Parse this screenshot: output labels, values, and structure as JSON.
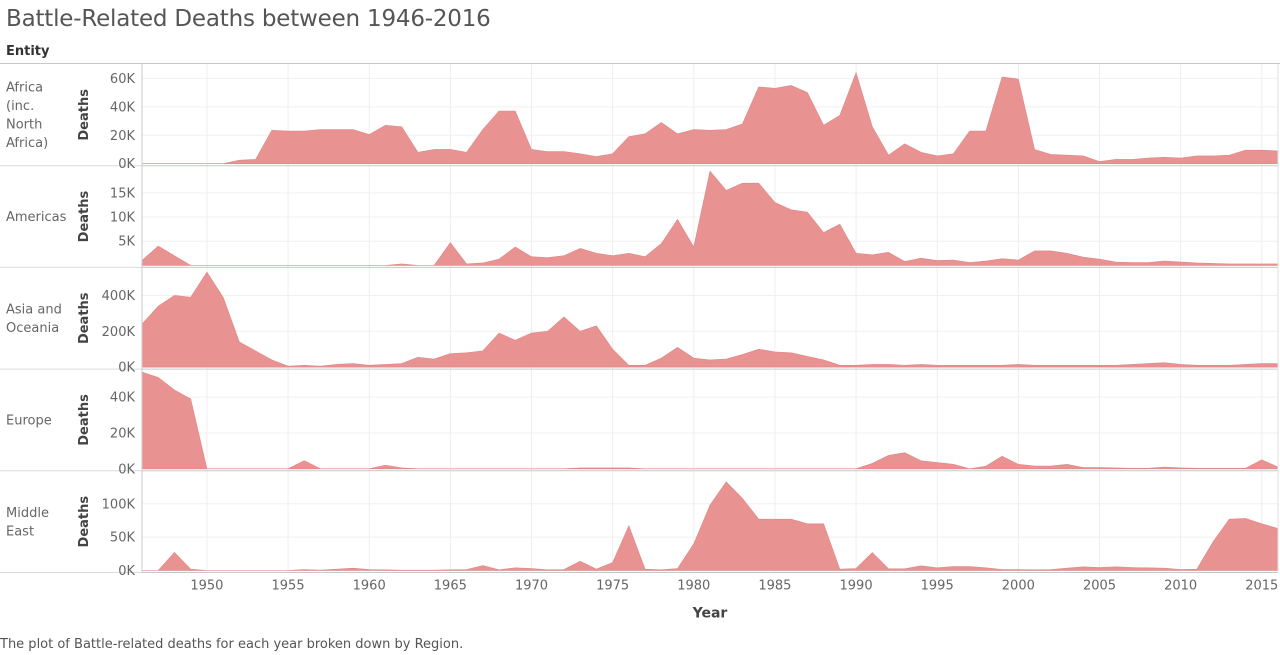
{
  "title": "Battle-Related Deaths between 1946-2016",
  "entity_header": "Entity",
  "caption": "The plot of Battle-related deaths for each year broken down by Region.",
  "chart_data": {
    "type": "area",
    "title": "Battle-Related Deaths between 1946-2016",
    "xlabel": "Year",
    "ylabel": "Deaths",
    "xlim": [
      1946,
      2016
    ],
    "x_ticks": [
      1950,
      1955,
      1960,
      1965,
      1970,
      1975,
      1980,
      1985,
      1990,
      1995,
      2000,
      2005,
      2010,
      2015
    ],
    "x_tick_labels": [
      "1950",
      "1955",
      "1960",
      "1965",
      "1970",
      "1975",
      "1980",
      "1985",
      "1990",
      "1995",
      "2000",
      "2005",
      "2010",
      "2015"
    ],
    "color": "#e88d8d",
    "grid": true,
    "years": [
      1946,
      1947,
      1948,
      1949,
      1950,
      1951,
      1952,
      1953,
      1954,
      1955,
      1956,
      1957,
      1958,
      1959,
      1960,
      1961,
      1962,
      1963,
      1964,
      1965,
      1966,
      1967,
      1968,
      1969,
      1970,
      1971,
      1972,
      1973,
      1974,
      1975,
      1976,
      1977,
      1978,
      1979,
      1980,
      1981,
      1982,
      1983,
      1984,
      1985,
      1986,
      1987,
      1988,
      1989,
      1990,
      1991,
      1992,
      1993,
      1994,
      1995,
      1996,
      1997,
      1998,
      1999,
      2000,
      2001,
      2002,
      2003,
      2004,
      2005,
      2006,
      2007,
      2008,
      2009,
      2010,
      2011,
      2012,
      2013,
      2014,
      2015,
      2016
    ],
    "series": [
      {
        "name": "Africa (inc. North Africa)",
        "label_lines": [
          "Africa",
          "(inc.",
          "North",
          "Africa)"
        ],
        "ylim": [
          0,
          68000
        ],
        "y_ticks": [
          0,
          20000,
          40000,
          60000
        ],
        "y_tick_labels": [
          "0K",
          "20K",
          "40K",
          "60K"
        ],
        "values": [
          0,
          0,
          0,
          0,
          0,
          0,
          2500,
          3000,
          23500,
          23000,
          23000,
          24000,
          24000,
          24000,
          20500,
          27000,
          26000,
          8000,
          10000,
          10000,
          8000,
          24000,
          37000,
          37000,
          10000,
          8500,
          8500,
          7000,
          5000,
          7000,
          19000,
          21000,
          29000,
          21000,
          24000,
          23500,
          24000,
          28000,
          54000,
          53000,
          55000,
          50000,
          27000,
          34000,
          64000,
          26000,
          6000,
          14000,
          8000,
          5500,
          7000,
          23000,
          23000,
          61000,
          59500,
          10000,
          6500,
          6000,
          5500,
          1500,
          3000,
          3000,
          4000,
          4500,
          4000,
          5500,
          5500,
          6000,
          9500,
          9500,
          9000
        ]
      },
      {
        "name": "Americas",
        "label_lines": [
          "Americas"
        ],
        "ylim": [
          0,
          20000
        ],
        "y_ticks": [
          5000,
          10000,
          15000
        ],
        "y_tick_labels": [
          "5K",
          "10K",
          "15K"
        ],
        "values": [
          1000,
          4000,
          2000,
          0,
          0,
          0,
          0,
          0,
          0,
          0,
          0,
          0,
          0,
          0,
          0,
          0,
          300,
          0,
          0,
          4700,
          300,
          500,
          1300,
          3800,
          1800,
          1600,
          2000,
          3500,
          2500,
          2000,
          2500,
          1800,
          4500,
          9500,
          3800,
          19500,
          15500,
          17000,
          17000,
          13000,
          11500,
          11000,
          6800,
          8500,
          2500,
          2200,
          2700,
          800,
          1500,
          1000,
          1100,
          600,
          900,
          1400,
          1100,
          3000,
          3000,
          2500,
          1700,
          1300,
          700,
          600,
          600,
          900,
          700,
          500,
          400,
          300,
          300,
          300,
          300
        ]
      },
      {
        "name": "Asia and Oceania",
        "label_lines": [
          "Asia and",
          "Oceania"
        ],
        "ylim": [
          0,
          540000
        ],
        "y_ticks": [
          0,
          200000,
          400000
        ],
        "y_tick_labels": [
          "0K",
          "200K",
          "400K"
        ],
        "values": [
          240000,
          340000,
          400000,
          390000,
          530000,
          390000,
          140000,
          90000,
          40000,
          5000,
          10000,
          5000,
          15000,
          20000,
          10000,
          15000,
          20000,
          55000,
          45000,
          75000,
          80000,
          90000,
          190000,
          150000,
          190000,
          200000,
          280000,
          200000,
          230000,
          100000,
          10000,
          10000,
          50000,
          110000,
          50000,
          40000,
          45000,
          70000,
          100000,
          85000,
          80000,
          60000,
          40000,
          10000,
          10000,
          15000,
          15000,
          10000,
          15000,
          10000,
          10000,
          10000,
          10000,
          10000,
          15000,
          10000,
          10000,
          10000,
          10000,
          10000,
          10000,
          15000,
          20000,
          25000,
          15000,
          10000,
          10000,
          10000,
          15000,
          20000,
          20000
        ]
      },
      {
        "name": "Europe",
        "label_lines": [
          "Europe"
        ],
        "ylim": [
          0,
          54000
        ],
        "y_ticks": [
          0,
          20000,
          40000
        ],
        "y_tick_labels": [
          "0K",
          "20K",
          "40K"
        ],
        "values": [
          54000,
          51000,
          44000,
          39000,
          0,
          0,
          0,
          0,
          0,
          0,
          4500,
          0,
          0,
          0,
          0,
          2000,
          500,
          0,
          0,
          0,
          0,
          0,
          0,
          0,
          0,
          0,
          0,
          500,
          500,
          500,
          500,
          0,
          0,
          0,
          0,
          0,
          0,
          0,
          0,
          0,
          0,
          0,
          0,
          0,
          0,
          3000,
          7500,
          9000,
          4500,
          3500,
          2500,
          0,
          1500,
          7000,
          2500,
          1500,
          1500,
          2500,
          700,
          700,
          500,
          300,
          300,
          1000,
          500,
          300,
          300,
          300,
          300,
          5000,
          1000
        ]
      },
      {
        "name": "Middle East",
        "label_lines": [
          "Middle",
          "East"
        ],
        "ylim": [
          0,
          145000
        ],
        "y_ticks": [
          0,
          50000,
          100000
        ],
        "y_tick_labels": [
          "0K",
          "50K",
          "100K"
        ],
        "values": [
          0,
          0,
          27000,
          2000,
          0,
          0,
          0,
          0,
          0,
          0,
          1500,
          500,
          2000,
          3500,
          1500,
          1000,
          500,
          500,
          500,
          1000,
          1500,
          7500,
          1000,
          4000,
          3000,
          1000,
          1500,
          14000,
          2000,
          12000,
          67000,
          2000,
          1000,
          3000,
          40000,
          98000,
          133000,
          108000,
          77000,
          77000,
          77000,
          70000,
          70000,
          2000,
          3000,
          27000,
          2500,
          2500,
          7000,
          4000,
          6000,
          6000,
          4000,
          1500,
          1500,
          1000,
          1500,
          3500,
          5500,
          4500,
          5500,
          4500,
          4000,
          3500,
          1500,
          2000,
          43000,
          77000,
          78000,
          70000,
          63000
        ]
      }
    ]
  }
}
